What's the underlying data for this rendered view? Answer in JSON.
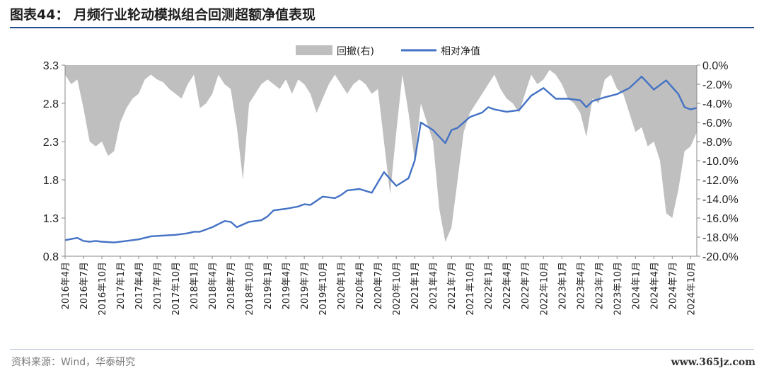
{
  "header": {
    "title": "图表44：  月频行业轮动模拟组合回测超额净值表现"
  },
  "footer": {
    "source": "资料来源：Wind，华泰研究",
    "watermark": "www.365jz.com"
  },
  "colors": {
    "line": "#4472C4",
    "area": "#BFBFBF",
    "title_rule": "#1F4F8F"
  },
  "chart_data": {
    "type": "line",
    "title": "",
    "legend": {
      "position": "top",
      "entries": [
        "回撤(右)",
        "相对净值"
      ]
    },
    "grid": false,
    "x_tick_labels": [
      "2016年4月",
      "2016年7月",
      "2016年10月",
      "2017年1月",
      "2017年4月",
      "2017年7月",
      "2017年10月",
      "2018年1月",
      "2018年4月",
      "2018年7月",
      "2018年10月",
      "2019年1月",
      "2019年4月",
      "2019年7月",
      "2019年10月",
      "2020年1月",
      "2020年4月",
      "2020年7月",
      "2020年10月",
      "2021年1月",
      "2021年4月",
      "2021年7月",
      "2021年10月",
      "2022年1月",
      "2022年4月",
      "2022年7月",
      "2022年10月",
      "2023年1月",
      "2023年4月",
      "2023年7月",
      "2023年10月",
      "2024年1月",
      "2024年4月",
      "2024年7月",
      "2024年10月"
    ],
    "y_left": {
      "label": "",
      "ticks": [
        "0.8",
        "1.3",
        "1.8",
        "2.3",
        "2.8",
        "3.3"
      ],
      "range": [
        0.8,
        3.3
      ]
    },
    "y_right": {
      "label": "",
      "ticks": [
        "0.0%",
        "-2.0%",
        "-4.0%",
        "-6.0%",
        "-8.0%",
        "-10.0%",
        "-12.0%",
        "-14.0%",
        "-16.0%",
        "-18.0%",
        "-20.0%"
      ],
      "range": [
        -20,
        0
      ]
    },
    "series": [
      {
        "name": "相对净值",
        "axis": "left",
        "style": "line",
        "x_month_index": [
          0,
          2,
          3,
          4,
          5,
          6,
          8,
          10,
          12,
          14,
          16,
          18,
          20,
          21,
          22,
          24,
          26,
          27,
          28,
          30,
          32,
          33,
          34,
          36,
          38,
          39,
          40,
          42,
          44,
          45,
          46,
          48,
          50,
          52,
          54,
          56,
          57,
          58,
          60,
          62,
          63,
          64,
          66,
          68,
          69,
          70,
          72,
          74,
          76,
          78,
          80,
          82,
          84,
          85,
          86,
          88,
          90,
          92,
          94,
          96,
          98,
          100,
          101,
          102,
          103
        ],
        "values": [
          1.01,
          1.04,
          1.0,
          0.99,
          1.0,
          0.99,
          0.98,
          1.0,
          1.02,
          1.06,
          1.07,
          1.08,
          1.1,
          1.12,
          1.12,
          1.18,
          1.26,
          1.25,
          1.18,
          1.25,
          1.27,
          1.32,
          1.4,
          1.42,
          1.45,
          1.48,
          1.47,
          1.58,
          1.56,
          1.6,
          1.66,
          1.68,
          1.63,
          1.9,
          1.72,
          1.82,
          2.05,
          2.55,
          2.45,
          2.28,
          2.45,
          2.48,
          2.62,
          2.68,
          2.75,
          2.72,
          2.69,
          2.71,
          2.9,
          3.0,
          2.86,
          2.86,
          2.84,
          2.75,
          2.83,
          2.88,
          2.92,
          3.0,
          3.15,
          2.98,
          3.1,
          2.92,
          2.75,
          2.72,
          2.74
        ]
      },
      {
        "name": "回撤(右)",
        "axis": "right",
        "style": "area",
        "x_month_index": [
          0,
          1,
          2,
          3,
          4,
          5,
          6,
          7,
          8,
          9,
          10,
          11,
          12,
          13,
          14,
          15,
          16,
          17,
          18,
          19,
          20,
          21,
          22,
          23,
          24,
          25,
          26,
          27,
          28,
          29,
          30,
          31,
          32,
          33,
          34,
          35,
          36,
          37,
          38,
          39,
          40,
          41,
          42,
          43,
          44,
          45,
          46,
          47,
          48,
          49,
          50,
          51,
          52,
          53,
          54,
          55,
          56,
          57,
          58,
          59,
          60,
          61,
          62,
          63,
          64,
          65,
          66,
          67,
          68,
          69,
          70,
          71,
          72,
          73,
          74,
          75,
          76,
          77,
          78,
          79,
          80,
          81,
          82,
          83,
          84,
          85,
          86,
          87,
          88,
          89,
          90,
          91,
          92,
          93,
          94,
          95,
          96,
          97,
          98,
          99,
          100,
          101,
          102,
          103
        ],
        "values": [
          -1.0,
          -2.0,
          -1.5,
          -4.5,
          -8.0,
          -8.5,
          -8.0,
          -9.5,
          -9.0,
          -6.0,
          -4.5,
          -3.5,
          -3.0,
          -1.5,
          -1.0,
          -1.5,
          -1.8,
          -2.5,
          -3.0,
          -3.5,
          -2.0,
          -1.0,
          -4.5,
          -4.0,
          -3.0,
          -1.0,
          -2.0,
          -2.5,
          -6.5,
          -12.0,
          -4.0,
          -3.0,
          -2.0,
          -1.5,
          -2.0,
          -2.5,
          -1.5,
          -3.0,
          -1.5,
          -2.0,
          -3.0,
          -5.0,
          -3.5,
          -2.0,
          -1.0,
          -2.0,
          -3.0,
          -2.0,
          -1.5,
          -2.0,
          -3.0,
          -2.5,
          -8.0,
          -13.5,
          -7.0,
          -1.0,
          -5.0,
          -10.0,
          -4.0,
          -6.0,
          -8.0,
          -15.0,
          -18.5,
          -17.0,
          -12.0,
          -7.0,
          -5.0,
          -4.0,
          -3.0,
          -2.0,
          -1.0,
          -2.5,
          -3.5,
          -4.0,
          -5.0,
          -3.0,
          -1.0,
          -2.0,
          -1.5,
          -0.5,
          -1.0,
          -2.0,
          -3.5,
          -4.0,
          -5.0,
          -7.5,
          -3.5,
          -4.0,
          -1.5,
          -1.0,
          -2.5,
          -3.0,
          -5.0,
          -7.0,
          -6.5,
          -8.5,
          -8.0,
          -10.0,
          -15.5,
          -16.0,
          -13.0,
          -9.0,
          -8.5,
          -7.0
        ]
      }
    ]
  }
}
